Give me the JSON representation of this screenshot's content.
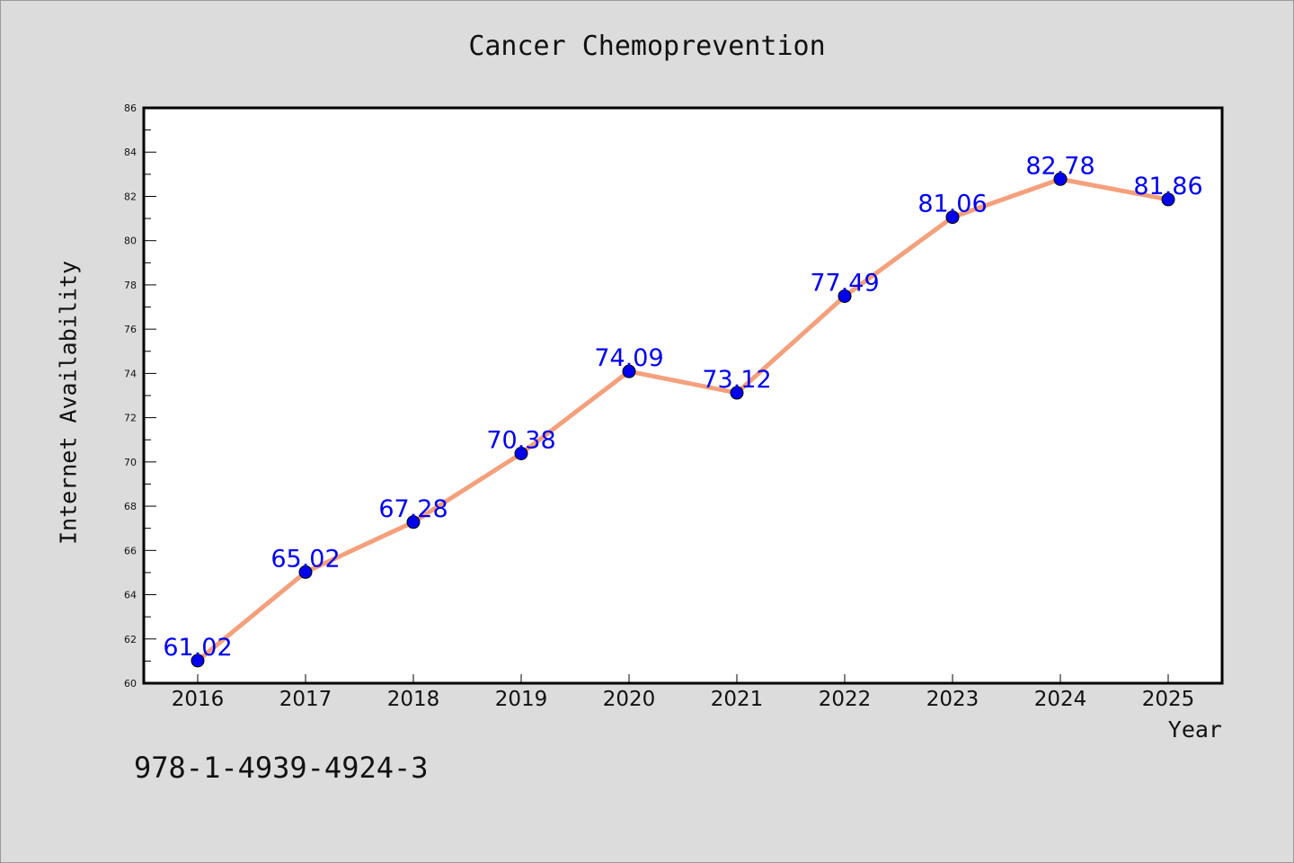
{
  "chart_data": {
    "type": "line",
    "title": "Cancer Chemoprevention",
    "xlabel": "Year",
    "ylabel": "Internet Availability",
    "categories": [
      "2016",
      "2017",
      "2018",
      "2019",
      "2020",
      "2021",
      "2022",
      "2023",
      "2024",
      "2025"
    ],
    "series": [
      {
        "values": [
          61.02,
          65.02,
          67.28,
          70.38,
          74.09,
          73.12,
          77.49,
          81.06,
          82.78,
          81.86
        ],
        "data_labels": [
          "61.02",
          "65.02",
          "67.28",
          "70.38",
          "74.09",
          "73.12",
          "77.49",
          "81.06",
          "82.78",
          "81.86"
        ],
        "line_color": "#f4a07c",
        "marker_color": "#0000ee",
        "label_color": "#0000ee"
      }
    ],
    "ylim": [
      60,
      86
    ],
    "y_ticks": [
      "60",
      "62",
      "64",
      "66",
      "68",
      "70",
      "72",
      "74",
      "76",
      "78",
      "80",
      "82",
      "84",
      "86"
    ],
    "grid": false,
    "legend": "none"
  },
  "footer": {
    "isbn": "978-1-4939-4924-3"
  },
  "colors": {
    "background": "#dcdcdc",
    "plot_area": "#ffffff"
  }
}
